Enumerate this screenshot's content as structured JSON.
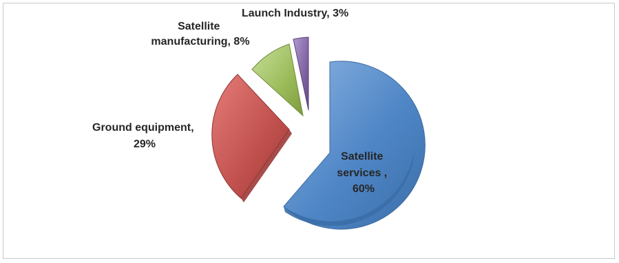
{
  "chart_data": {
    "type": "pie",
    "exploded": true,
    "style": "3d",
    "slices": [
      {
        "label": "Satellite services",
        "value": 60,
        "label_line1": "Satellite",
        "label_line2": "services ,",
        "label_line3": "60%",
        "color": "#4f86c6"
      },
      {
        "label": "Ground equipment",
        "value": 29,
        "label_line1": "Ground equipment,",
        "label_line2": "29%",
        "color": "#c0504d"
      },
      {
        "label": "Satellite manufacturing",
        "value": 8,
        "label_line1": "Satellite",
        "label_line2": "manufacturing, 8%",
        "color": "#9bbb59"
      },
      {
        "label": "Launch Industry",
        "value": 3,
        "label_line1": "Launch Industry, 3%",
        "color": "#8064a2"
      }
    ]
  }
}
